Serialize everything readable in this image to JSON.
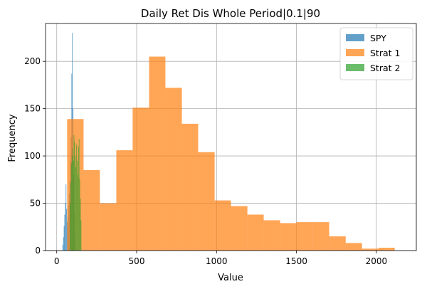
{
  "chart_data": {
    "type": "bar",
    "title": "Daily Ret Dis Whole Period|0.1|90",
    "xlabel": "Value",
    "ylabel": "Frequency",
    "xlim": [
      -70,
      2250
    ],
    "ylim": [
      0,
      240
    ],
    "xticks": [
      0,
      500,
      1000,
      1500,
      2000
    ],
    "yticks": [
      0,
      50,
      100,
      150,
      200
    ],
    "grid": true,
    "legend": "top-right",
    "series": [
      {
        "name": "SPY",
        "color": "#1f77b4",
        "alpha": 0.7,
        "bins": [
          [
            36,
            40,
            6
          ],
          [
            40,
            44,
            14
          ],
          [
            44,
            48,
            26
          ],
          [
            48,
            52,
            38
          ],
          [
            52,
            56,
            50
          ],
          [
            56,
            60,
            70
          ],
          [
            60,
            64,
            44
          ],
          [
            64,
            68,
            30
          ],
          [
            68,
            72,
            36
          ],
          [
            72,
            76,
            48
          ],
          [
            76,
            80,
            60
          ],
          [
            80,
            84,
            74
          ],
          [
            84,
            88,
            95
          ],
          [
            88,
            92,
            120
          ],
          [
            92,
            96,
            187
          ],
          [
            96,
            100,
            230
          ],
          [
            100,
            104,
            150
          ],
          [
            104,
            108,
            80
          ],
          [
            108,
            112,
            40
          ],
          [
            112,
            116,
            18
          ]
        ]
      },
      {
        "name": "Strat 1",
        "color": "#ff7f0e",
        "alpha": 0.7,
        "bins": [
          [
            65,
            168,
            139
          ],
          [
            168,
            270,
            85
          ],
          [
            270,
            373,
            50
          ],
          [
            373,
            475,
            106
          ],
          [
            475,
            578,
            151
          ],
          [
            578,
            680,
            205
          ],
          [
            680,
            783,
            172
          ],
          [
            783,
            885,
            134
          ],
          [
            885,
            988,
            104
          ],
          [
            988,
            1090,
            53
          ],
          [
            1090,
            1193,
            47
          ],
          [
            1193,
            1295,
            38
          ],
          [
            1295,
            1398,
            32
          ],
          [
            1398,
            1500,
            29
          ],
          [
            1500,
            1603,
            30
          ],
          [
            1603,
            1705,
            30
          ],
          [
            1705,
            1808,
            15
          ],
          [
            1808,
            1910,
            8
          ],
          [
            1910,
            2013,
            2
          ],
          [
            2013,
            2115,
            3
          ]
        ]
      },
      {
        "name": "Strat 2",
        "color": "#2ca02c",
        "alpha": 0.7,
        "bins": [
          [
            82,
            86,
            50
          ],
          [
            86,
            90,
            72
          ],
          [
            90,
            94,
            92
          ],
          [
            94,
            98,
            100
          ],
          [
            98,
            102,
            108
          ],
          [
            102,
            106,
            95
          ],
          [
            106,
            110,
            122
          ],
          [
            110,
            114,
            115
          ],
          [
            114,
            118,
            100
          ],
          [
            118,
            122,
            88
          ],
          [
            122,
            126,
            112
          ],
          [
            126,
            130,
            95
          ],
          [
            130,
            134,
            80
          ],
          [
            134,
            138,
            110
          ],
          [
            138,
            142,
            118
          ],
          [
            142,
            146,
            76
          ],
          [
            146,
            150,
            55
          ],
          [
            150,
            154,
            32
          ]
        ]
      }
    ]
  }
}
